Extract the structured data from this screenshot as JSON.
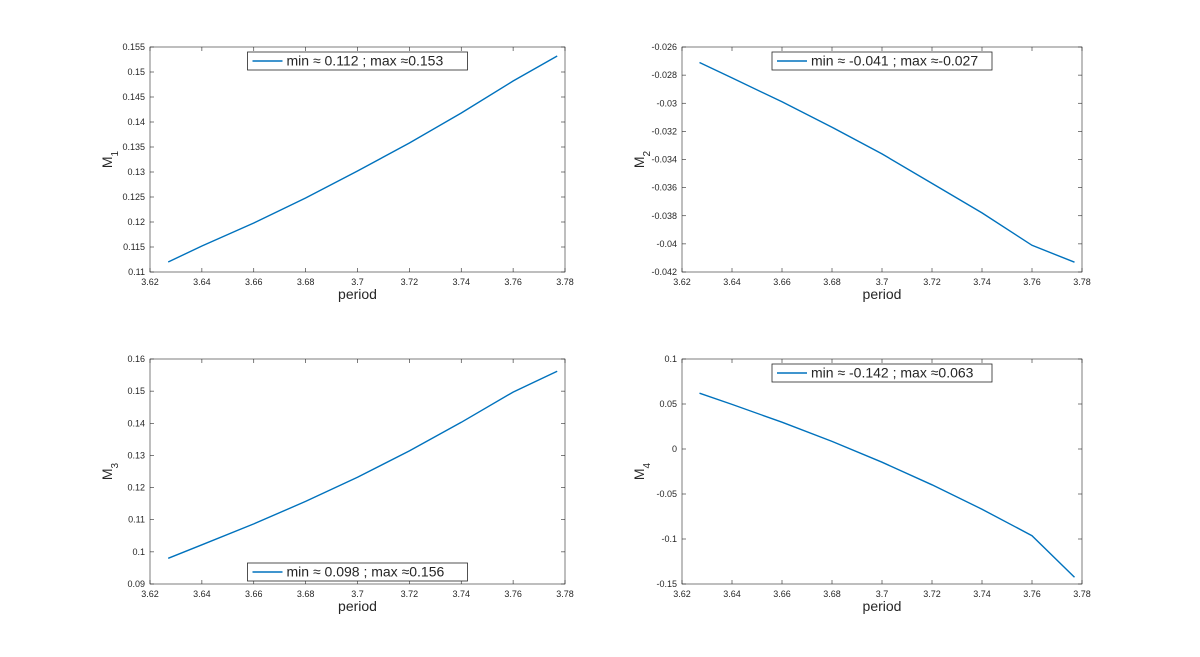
{
  "colors": {
    "line": "#0072bd",
    "axis": "#262626",
    "background": "#ffffff"
  },
  "chart_data": [
    {
      "type": "line",
      "xlabel": "period",
      "ylabel": "M",
      "ylabel_sub": "1",
      "xlim": [
        3.62,
        3.78
      ],
      "ylim": [
        0.11,
        0.155
      ],
      "xticks": [
        3.62,
        3.64,
        3.66,
        3.68,
        3.7,
        3.72,
        3.74,
        3.76,
        3.78
      ],
      "xtick_labels": [
        "3.62",
        "3.64",
        "3.66",
        "3.68",
        "3.7",
        "3.72",
        "3.74",
        "3.76",
        "3.78"
      ],
      "yticks": [
        0.11,
        0.115,
        0.12,
        0.125,
        0.13,
        0.135,
        0.14,
        0.145,
        0.15,
        0.155
      ],
      "ytick_labels": [
        "0.11",
        "0.115",
        "0.12",
        "0.125",
        "0.13",
        "0.135",
        "0.14",
        "0.145",
        "0.15",
        "0.155"
      ],
      "legend": {
        "label": "min ≈ 0.112 ; max ≈0.153",
        "location": "top-center"
      },
      "grid": false,
      "series": [
        {
          "x": [
            3.627,
            3.64,
            3.66,
            3.68,
            3.7,
            3.72,
            3.74,
            3.76,
            3.777
          ],
          "y": [
            0.112,
            0.1152,
            0.1198,
            0.1248,
            0.1302,
            0.1358,
            0.1418,
            0.1482,
            0.1532
          ]
        }
      ]
    },
    {
      "type": "line",
      "xlabel": "period",
      "ylabel": "M",
      "ylabel_sub": "2",
      "xlim": [
        3.62,
        3.78
      ],
      "ylim": [
        -0.042,
        -0.026
      ],
      "xticks": [
        3.62,
        3.64,
        3.66,
        3.68,
        3.7,
        3.72,
        3.74,
        3.76,
        3.78
      ],
      "xtick_labels": [
        "3.62",
        "3.64",
        "3.66",
        "3.68",
        "3.7",
        "3.72",
        "3.74",
        "3.76",
        "3.78"
      ],
      "yticks": [
        -0.042,
        -0.04,
        -0.038,
        -0.036,
        -0.034,
        -0.032,
        -0.03,
        -0.028,
        -0.026
      ],
      "ytick_labels": [
        "-0.042",
        "-0.04",
        "-0.038",
        "-0.036",
        "-0.034",
        "-0.032",
        "-0.03",
        "-0.028",
        "-0.026"
      ],
      "legend": {
        "label": "min ≈ -0.041 ; max ≈-0.027",
        "location": "top-center"
      },
      "grid": false,
      "series": [
        {
          "x": [
            3.627,
            3.64,
            3.66,
            3.68,
            3.7,
            3.72,
            3.74,
            3.76,
            3.777
          ],
          "y": [
            -0.0271,
            -0.0282,
            -0.0299,
            -0.0317,
            -0.0336,
            -0.0357,
            -0.0378,
            -0.0401,
            -0.0413
          ]
        }
      ]
    },
    {
      "type": "line",
      "xlabel": "period",
      "ylabel": "M",
      "ylabel_sub": "3",
      "xlim": [
        3.62,
        3.78
      ],
      "ylim": [
        0.09,
        0.16
      ],
      "xticks": [
        3.62,
        3.64,
        3.66,
        3.68,
        3.7,
        3.72,
        3.74,
        3.76,
        3.78
      ],
      "xtick_labels": [
        "3.62",
        "3.64",
        "3.66",
        "3.68",
        "3.7",
        "3.72",
        "3.74",
        "3.76",
        "3.78"
      ],
      "yticks": [
        0.09,
        0.1,
        0.11,
        0.12,
        0.13,
        0.14,
        0.15,
        0.16
      ],
      "ytick_labels": [
        "0.09",
        "0.1",
        "0.11",
        "0.12",
        "0.13",
        "0.14",
        "0.15",
        "0.16"
      ],
      "legend": {
        "label": "min ≈ 0.098 ; max ≈0.156",
        "location": "bottom-center"
      },
      "grid": false,
      "series": [
        {
          "x": [
            3.627,
            3.64,
            3.66,
            3.68,
            3.7,
            3.72,
            3.74,
            3.76,
            3.777
          ],
          "y": [
            0.098,
            0.1022,
            0.1087,
            0.1157,
            0.1232,
            0.1314,
            0.1403,
            0.1497,
            0.1562
          ]
        }
      ]
    },
    {
      "type": "line",
      "xlabel": "period",
      "ylabel": "M",
      "ylabel_sub": "4",
      "xlim": [
        3.62,
        3.78
      ],
      "ylim": [
        -0.15,
        0.1
      ],
      "xticks": [
        3.62,
        3.64,
        3.66,
        3.68,
        3.7,
        3.72,
        3.74,
        3.76,
        3.78
      ],
      "xtick_labels": [
        "3.62",
        "3.64",
        "3.66",
        "3.68",
        "3.7",
        "3.72",
        "3.74",
        "3.76",
        "3.78"
      ],
      "yticks": [
        -0.15,
        -0.1,
        -0.05,
        0,
        0.05,
        0.1
      ],
      "ytick_labels": [
        "-0.15",
        "-0.1",
        "-0.05",
        "0",
        "0.05",
        "0.1"
      ],
      "legend": {
        "label": "min ≈ -0.142 ; max ≈0.063",
        "location": "top-center"
      },
      "grid": false,
      "series": [
        {
          "x": [
            3.627,
            3.64,
            3.66,
            3.68,
            3.7,
            3.72,
            3.74,
            3.76,
            3.777
          ],
          "y": [
            0.062,
            0.0495,
            0.0298,
            0.0085,
            -0.0147,
            -0.0398,
            -0.0669,
            -0.0963,
            -0.1426
          ]
        }
      ]
    }
  ]
}
